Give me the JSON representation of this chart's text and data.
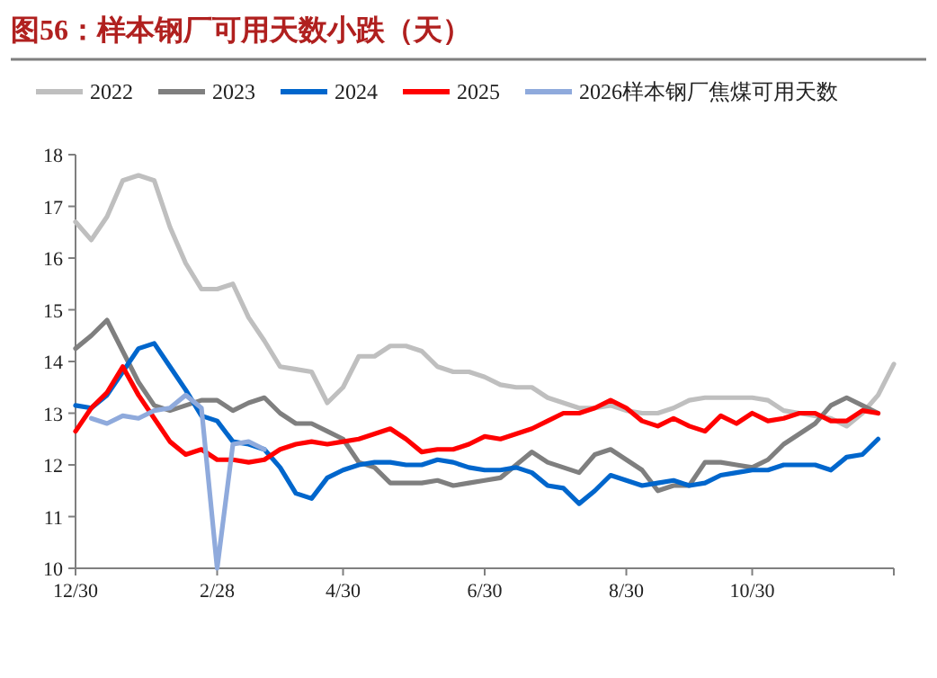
{
  "chart_data": {
    "type": "line",
    "title": "图56：样本钢厂可用天数小跌（天）",
    "ylim": [
      10,
      18
    ],
    "categories": [
      "12/30",
      null,
      null,
      null,
      null,
      null,
      null,
      null,
      null,
      "2/28",
      null,
      null,
      null,
      null,
      null,
      null,
      null,
      "4/30",
      null,
      null,
      null,
      null,
      null,
      null,
      null,
      null,
      "6/30",
      null,
      null,
      null,
      null,
      null,
      null,
      null,
      null,
      "8/30",
      null,
      null,
      null,
      null,
      null,
      null,
      null,
      "10/30",
      null,
      null,
      null,
      null,
      null,
      null,
      null,
      null,
      null
    ],
    "yticks": [
      10,
      11,
      12,
      13,
      14,
      15,
      16,
      17,
      18
    ],
    "grid": false,
    "legend": "top",
    "marker": "none",
    "line_style": "solid",
    "series": [
      {
        "name": "2022",
        "color": "#bfbfbf",
        "values": [
          16.7,
          16.35,
          16.8,
          17.5,
          17.6,
          17.5,
          16.6,
          15.9,
          15.4,
          15.4,
          15.5,
          14.85,
          14.4,
          13.9,
          13.85,
          13.8,
          13.2,
          13.5,
          14.1,
          14.1,
          14.3,
          14.3,
          14.2,
          13.9,
          13.8,
          13.8,
          13.7,
          13.55,
          13.5,
          13.5,
          13.3,
          13.2,
          13.1,
          13.1,
          13.15,
          13.05,
          13.0,
          13.0,
          13.1,
          13.25,
          13.3,
          13.3,
          13.3,
          13.3,
          13.25,
          13.05,
          13.0,
          12.95,
          12.9,
          12.75,
          13.0,
          13.35,
          13.95
        ]
      },
      {
        "name": "2023",
        "color": "#7f7f7f",
        "values": [
          14.25,
          14.5,
          14.8,
          14.2,
          13.6,
          13.15,
          13.05,
          13.15,
          13.25,
          13.25,
          13.05,
          13.2,
          13.3,
          13.0,
          12.8,
          12.8,
          12.65,
          12.5,
          12.05,
          11.95,
          11.65,
          11.65,
          11.65,
          11.7,
          11.6,
          11.65,
          11.7,
          11.75,
          12.0,
          12.25,
          12.05,
          11.95,
          11.85,
          12.2,
          12.3,
          12.1,
          11.9,
          11.5,
          11.6,
          11.6,
          12.05,
          12.05,
          12.0,
          11.95,
          12.1,
          12.4,
          12.6,
          12.8,
          13.15,
          13.3,
          13.15,
          13.0,
          null
        ]
      },
      {
        "name": "2024",
        "color": "#0066cc",
        "values": [
          13.15,
          13.1,
          13.35,
          13.8,
          14.25,
          14.35,
          13.9,
          13.45,
          12.95,
          12.85,
          12.45,
          12.4,
          12.3,
          11.95,
          11.45,
          11.35,
          11.75,
          11.9,
          12.0,
          12.05,
          12.05,
          12.0,
          12.0,
          12.1,
          12.05,
          11.95,
          11.9,
          11.9,
          11.95,
          11.85,
          11.6,
          11.55,
          11.25,
          11.5,
          11.8,
          11.7,
          11.6,
          11.65,
          11.7,
          11.6,
          11.65,
          11.8,
          11.85,
          11.9,
          11.9,
          12.0,
          12.0,
          12.0,
          11.9,
          12.15,
          12.2,
          12.5,
          null
        ]
      },
      {
        "name": "2025",
        "color": "#ff0000",
        "values": [
          12.65,
          13.1,
          13.4,
          13.9,
          13.35,
          12.9,
          12.45,
          12.2,
          12.3,
          12.1,
          12.1,
          12.05,
          12.1,
          12.3,
          12.4,
          12.45,
          12.4,
          12.45,
          12.5,
          12.6,
          12.7,
          12.5,
          12.25,
          12.3,
          12.3,
          12.4,
          12.55,
          12.5,
          12.6,
          12.7,
          12.85,
          13.0,
          13.0,
          13.1,
          13.25,
          13.1,
          12.85,
          12.75,
          12.9,
          12.75,
          12.65,
          12.95,
          12.8,
          13.0,
          12.85,
          12.9,
          13.0,
          13.0,
          12.85,
          12.85,
          13.05,
          13.0,
          null
        ]
      },
      {
        "name": "2026样本钢厂焦煤可用天数",
        "color": "#8faadc",
        "values": [
          null,
          12.9,
          12.8,
          12.95,
          12.9,
          13.05,
          13.1,
          13.35,
          13.1,
          10,
          12.4,
          12.45,
          12.3,
          null,
          null,
          null,
          null,
          null,
          null,
          null,
          null,
          null,
          null,
          null,
          null,
          null,
          null,
          null,
          null,
          null,
          null,
          null,
          null,
          null,
          null,
          null,
          null,
          null,
          null,
          null,
          null,
          null,
          null,
          null,
          null,
          null,
          null,
          null,
          null,
          null,
          null,
          null,
          null
        ]
      }
    ]
  }
}
